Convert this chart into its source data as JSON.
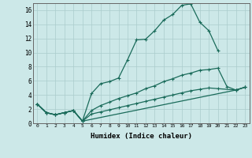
{
  "xlabel": "Humidex (Indice chaleur)",
  "bg_color": "#cce8e8",
  "line_color": "#1a6b5a",
  "grid_color": "#aacccc",
  "xlim": [
    -0.5,
    23.5
  ],
  "ylim": [
    0,
    17
  ],
  "xticks": [
    0,
    1,
    2,
    3,
    4,
    5,
    6,
    7,
    8,
    9,
    10,
    11,
    12,
    13,
    14,
    15,
    16,
    17,
    18,
    19,
    20,
    21,
    22,
    23
  ],
  "yticks": [
    0,
    2,
    4,
    6,
    8,
    10,
    12,
    14,
    16
  ],
  "line1_x": [
    0,
    1,
    2,
    3,
    4,
    5,
    6,
    7,
    8,
    9,
    10,
    11,
    12,
    13,
    14,
    15,
    16,
    17,
    18,
    19,
    20
  ],
  "line1_y": [
    2.7,
    1.5,
    1.2,
    1.5,
    1.8,
    0.3,
    4.2,
    5.6,
    5.9,
    6.4,
    9.0,
    11.8,
    11.9,
    13.1,
    14.6,
    15.4,
    16.7,
    16.9,
    14.3,
    13.1,
    10.3
  ],
  "line2_x": [
    0,
    1,
    2,
    3,
    4,
    5,
    6,
    7,
    8,
    9,
    10,
    11,
    12,
    13,
    14,
    15,
    16,
    17,
    18,
    19,
    20,
    21,
    22,
    23
  ],
  "line2_y": [
    2.7,
    1.5,
    1.2,
    1.5,
    1.8,
    0.3,
    1.8,
    2.5,
    3.0,
    3.5,
    3.9,
    4.3,
    4.9,
    5.3,
    5.9,
    6.3,
    6.8,
    7.1,
    7.5,
    7.6,
    7.8,
    5.2,
    4.7,
    5.1
  ],
  "line3_x": [
    0,
    1,
    2,
    3,
    4,
    5,
    22,
    23
  ],
  "line3_y": [
    2.7,
    1.5,
    1.2,
    1.5,
    1.8,
    0.3,
    4.7,
    5.1
  ],
  "line4_x": [
    0,
    1,
    2,
    3,
    4,
    5,
    6,
    7,
    8,
    9,
    10,
    11,
    12,
    13,
    14,
    15,
    16,
    17,
    18,
    19,
    20,
    22,
    23
  ],
  "line4_y": [
    2.7,
    1.5,
    1.2,
    1.5,
    1.8,
    0.3,
    1.3,
    1.6,
    1.9,
    2.2,
    2.5,
    2.8,
    3.1,
    3.4,
    3.7,
    4.0,
    4.3,
    4.6,
    4.8,
    5.0,
    4.9,
    4.7,
    5.1
  ]
}
